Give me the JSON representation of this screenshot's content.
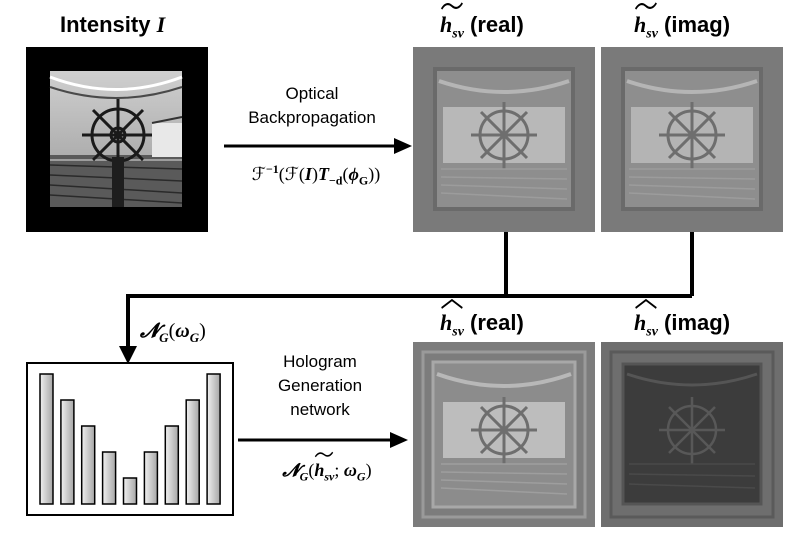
{
  "intensity_title": {
    "text": "Intensity",
    "symbol": "I"
  },
  "optical_step": {
    "label_line1": "Optical",
    "label_line2": "Backpropagation",
    "formula_prefix": "ℱ",
    "formula_exp": "−1",
    "formula_open": "(ℱ(",
    "formula_I": "I",
    "formula_close1": ")",
    "formula_T": "T",
    "formula_Tsub": "−d",
    "formula_open2": "(",
    "formula_phi": "ϕ",
    "formula_phisub": "G",
    "formula_close2": "))"
  },
  "top_panels": [
    {
      "symbol": "h",
      "sub": "sv",
      "accent": "tilde",
      "suffix": " (real)"
    },
    {
      "symbol": "h",
      "sub": "sv",
      "accent": "tilde",
      "suffix": " (imag)"
    }
  ],
  "network_box_label": {
    "N": "𝓝",
    "sub": "G",
    "arg_open": "(",
    "omega": "ω",
    "omega_sub": "G",
    "arg_close": ")"
  },
  "bar_chart_values": [
    10,
    8,
    6,
    4,
    2,
    4,
    6,
    8,
    10
  ],
  "hologram_step": {
    "label_line1": "Hologram",
    "label_line2": "Generation",
    "label_line3": "network",
    "formula_N": "𝓝",
    "formula_Nsub": "G",
    "formula_open": "(",
    "formula_h": "h",
    "formula_hsub": "sv",
    "formula_sep": "; ",
    "formula_omega": "ω",
    "formula_omegasub": "G",
    "formula_close": ")"
  },
  "bottom_panels": [
    {
      "symbol": "h",
      "sub": "sv",
      "accent": "hat",
      "suffix": " (real)"
    },
    {
      "symbol": "h",
      "sub": "sv",
      "accent": "hat",
      "suffix": " (imag)"
    }
  ],
  "colors": {
    "panel_gray": "#7a7a7a",
    "panel_dark": "#3c3c3c",
    "bar_fill_light": "#ededed",
    "bar_fill_dark": "#a9a9a9",
    "arrow": "#000000"
  }
}
